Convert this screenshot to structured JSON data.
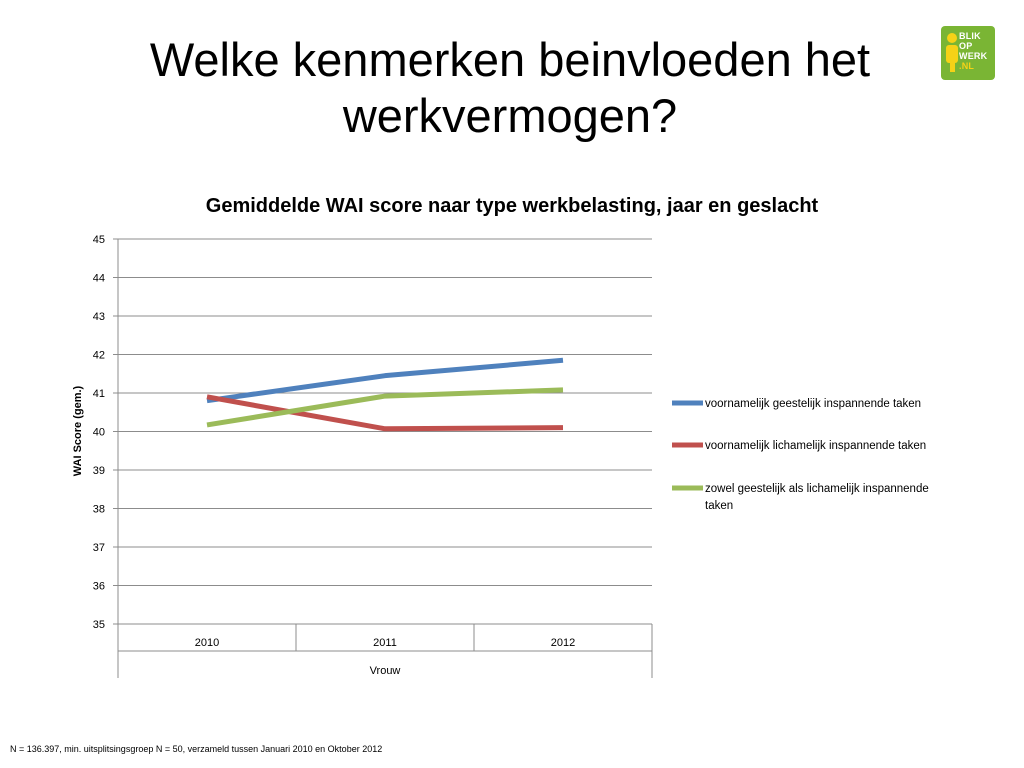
{
  "slide": {
    "title_line1": "Welke kenmerken beinvloeden het",
    "title_line2": "werkvermogen?"
  },
  "logo": {
    "icon": "person-icon",
    "lines": [
      "BLIK",
      "OP",
      "WERK",
      ".NL"
    ],
    "colors": {
      "background": "#7ab534",
      "accent": "#f5d217"
    }
  },
  "chart_data": {
    "type": "line",
    "title": "Gemiddelde WAI score naar type werkbelasting, jaar en geslacht",
    "ylabel": "WAI Score (gem.)",
    "xlabel": "",
    "categories": [
      "2010",
      "2011",
      "2012"
    ],
    "category_group": "Vrouw",
    "ylim": [
      35,
      45
    ],
    "yticks": [
      "35",
      "36",
      "37",
      "38",
      "39",
      "40",
      "41",
      "42",
      "43",
      "44",
      "45"
    ],
    "grid": true,
    "legend": "right",
    "series": [
      {
        "name": "voornamelijk geestelijk inspannende taken",
        "color": "#4f81bd",
        "values": [
          40.8,
          41.45,
          41.85
        ]
      },
      {
        "name": "voornamelijk lichamelijk inspannende taken",
        "color": "#c0504d",
        "values": [
          40.9,
          40.07,
          40.1
        ]
      },
      {
        "name": "zowel geestelijk als lichamelijk inspannende taken",
        "color": "#9bbb59",
        "values": [
          40.17,
          40.92,
          41.08
        ]
      }
    ]
  },
  "footnote": "N = 136.397, min. uitsplitsingsgroep N = 50, verzameld tussen Januari 2010 en Oktober 2012"
}
